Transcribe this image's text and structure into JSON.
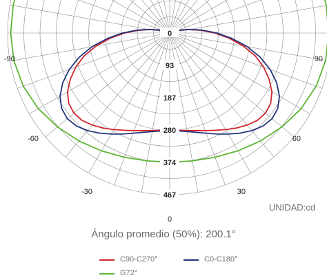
{
  "chart_data": {
    "type": "polar-line",
    "unit_label": "UNIDAD:cd",
    "radial_ticks": [
      0,
      93,
      187,
      280,
      374,
      467
    ],
    "angle_labels": [
      "-90",
      "-60",
      "-30",
      "0",
      "30",
      "60",
      "90"
    ],
    "angle_grid_step_deg": 10,
    "rlim": [
      0,
      467
    ],
    "series": [
      {
        "name": "C90-C270°",
        "color": "#d0262e",
        "angles": [
          0,
          5,
          10,
          15,
          20,
          25,
          30,
          35,
          40,
          45,
          50,
          55,
          60,
          65,
          70,
          75,
          80,
          85,
          90,
          95,
          100,
          105,
          110,
          115,
          120,
          125,
          130,
          135,
          140,
          145,
          150,
          155,
          160,
          165,
          170,
          175,
          180
        ],
        "values": [
          280,
          282,
          286,
          292,
          300,
          310,
          322,
          335,
          347,
          357,
          360,
          355,
          340,
          316,
          288,
          255,
          215,
          172,
          130,
          90,
          57,
          32,
          15,
          5,
          0,
          0,
          0,
          0,
          0,
          0,
          0,
          0,
          0,
          0,
          0,
          0,
          0
        ]
      },
      {
        "name": "C0-C180°",
        "color": "#23357a",
        "angles": [
          0,
          5,
          10,
          15,
          20,
          25,
          30,
          35,
          40,
          45,
          50,
          55,
          60,
          65,
          70,
          75,
          80,
          85,
          90,
          95,
          100,
          105,
          110,
          115,
          120,
          125,
          130,
          135,
          140,
          145,
          150,
          155,
          160,
          165,
          170,
          175,
          180
        ],
        "values": [
          281,
          284,
          289,
          297,
          308,
          322,
          337,
          353,
          368,
          380,
          385,
          380,
          365,
          340,
          308,
          270,
          227,
          180,
          136,
          95,
          60,
          34,
          16,
          5,
          0,
          0,
          0,
          0,
          0,
          0,
          0,
          0,
          0,
          0,
          0,
          0,
          0
        ]
      },
      {
        "name": "G72°",
        "color": "#5cb531",
        "angles": [
          0,
          10,
          20,
          30,
          40,
          50,
          60,
          70,
          80,
          90,
          100,
          110,
          120
        ],
        "values": [
          373,
          375,
          382,
          393,
          407,
          422,
          437,
          449,
          456,
          458,
          458,
          458,
          458
        ]
      }
    ]
  },
  "average_angle_text": "Ángulo promedio (50%): 200.1°",
  "legend": {
    "c90": "C90-C270°",
    "c0": "C0-C180°",
    "g72": "G72°"
  }
}
